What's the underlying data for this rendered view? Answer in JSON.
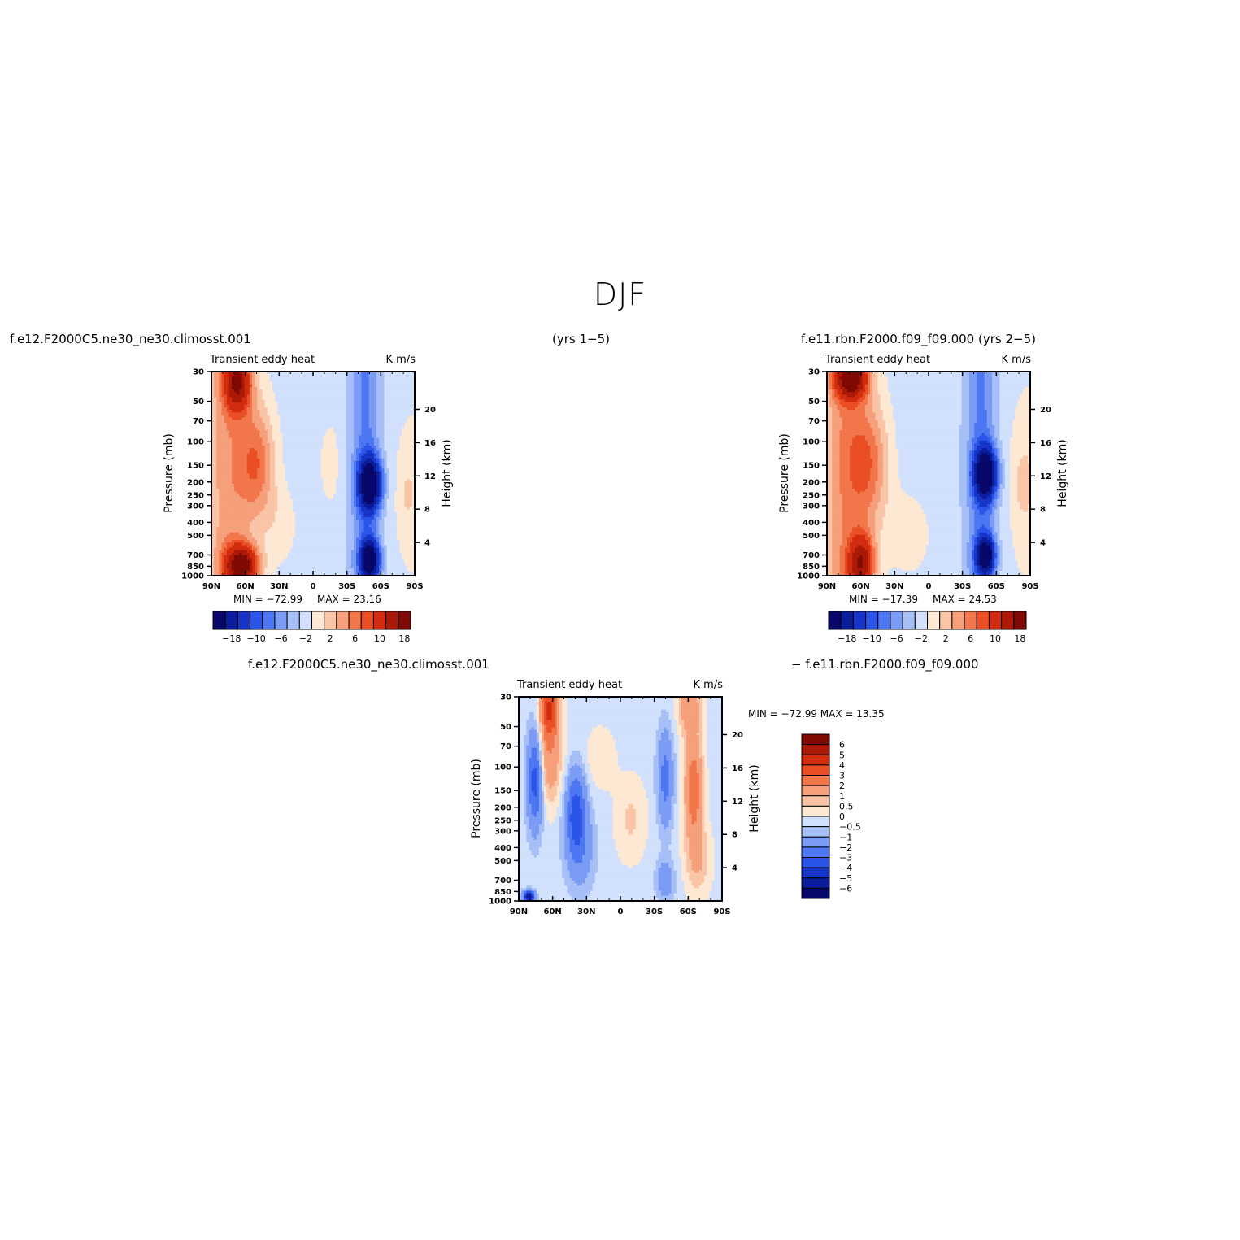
{
  "page": {
    "title": "DJF"
  },
  "headers": {
    "left": "f.e12.F2000C5.ne30_ne30.climosst.001",
    "center": "(yrs  1−5)",
    "right": "f.e11.rbn.F2000.f09_f09.000  (yrs  2−5)",
    "bottom_left": "f.e12.F2000C5.ne30_ne30.climosst.001",
    "bottom_right": "−  f.e11.rbn.F2000.f09_f09.000"
  },
  "colors": {
    "contour_levels": [
      "#08086b",
      "#0b1d9a",
      "#1635c6",
      "#2a55e8",
      "#4d77f2",
      "#7b9cf5",
      "#a7bff7",
      "#d1e0fc",
      "#fde8d4",
      "#f9c5a6",
      "#f5a07a",
      "#f1764b",
      "#ea4e25",
      "#d12c0f",
      "#ab1a06",
      "#7e0a03"
    ]
  },
  "chart_data": [
    {
      "type": "heatmap",
      "panel": "top-left",
      "title": "Transient  eddy  heat",
      "units": "K  m/s",
      "xlabel": "",
      "ylabel": "Pressure  (mb)",
      "ylabel_right": "Height  (km)",
      "x_ticks": [
        "90N",
        "60N",
        "30N",
        "0",
        "30S",
        "60S",
        "90S"
      ],
      "y_ticks": [
        "30",
        "50",
        "70",
        "100",
        "150",
        "200",
        "250",
        "300",
        "400",
        "500",
        "700",
        "850",
        "1000"
      ],
      "y_right_ticks": [
        "20",
        "16",
        "12",
        "8",
        "4"
      ],
      "log_scale_y": true,
      "min_text": "MIN  =  −72.99",
      "max_text": "MAX  =    23.16",
      "colorbar_labels": [
        "−18",
        "−10",
        "−6",
        "−2",
        "2",
        "6",
        "10",
        "18"
      ]
    },
    {
      "type": "heatmap",
      "panel": "top-right",
      "title": "Transient  eddy  heat",
      "units": "K  m/s",
      "xlabel": "",
      "ylabel": "Pressure  (mb)",
      "ylabel_right": "Height  (km)",
      "x_ticks": [
        "90N",
        "60N",
        "30N",
        "0",
        "30S",
        "60S",
        "90S"
      ],
      "y_ticks": [
        "30",
        "50",
        "70",
        "100",
        "150",
        "200",
        "250",
        "300",
        "400",
        "500",
        "700",
        "850",
        "1000"
      ],
      "y_right_ticks": [
        "20",
        "16",
        "12",
        "8",
        "4"
      ],
      "log_scale_y": true,
      "min_text": "MIN  =  −17.39",
      "max_text": "MAX  =    24.53",
      "colorbar_labels": [
        "−18",
        "−10",
        "−6",
        "−2",
        "2",
        "6",
        "10",
        "18"
      ]
    },
    {
      "type": "heatmap",
      "panel": "bottom-difference",
      "title": "Transient  eddy  heat",
      "units": "K  m/s",
      "xlabel": "",
      "ylabel": "Pressure  (mb)",
      "ylabel_right": "Height  (km)",
      "x_ticks": [
        "90N",
        "60N",
        "30N",
        "0",
        "30S",
        "60S",
        "90S"
      ],
      "y_ticks": [
        "30",
        "50",
        "70",
        "100",
        "150",
        "200",
        "250",
        "300",
        "400",
        "500",
        "700",
        "850",
        "1000"
      ],
      "y_right_ticks": [
        "20",
        "16",
        "12",
        "8",
        "4"
      ],
      "log_scale_y": true,
      "minmax_text": "MIN  =  −72.99    MAX  =    13.35",
      "colorbar_labels": [
        "6",
        "5",
        "4",
        "3",
        "2",
        "1",
        "0.5",
        "0",
        "−0.5",
        "−1",
        "−2",
        "−3",
        "−4",
        "−5",
        "−6"
      ]
    }
  ]
}
